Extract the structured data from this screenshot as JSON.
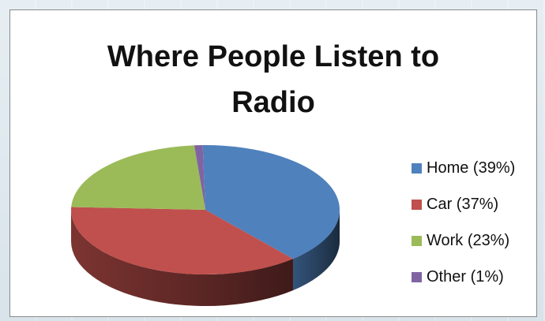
{
  "chart_data": {
    "type": "pie",
    "title": "Where People Listen to Radio",
    "categories": [
      "Home",
      "Car",
      "Work",
      "Other"
    ],
    "values": [
      39,
      37,
      23,
      1
    ],
    "unit": "%",
    "legend_labels": [
      "Home (39%)",
      "Car (37%)",
      "Work (23%)",
      "Other (1%)"
    ],
    "colors": [
      "#4f81bd",
      "#c0504d",
      "#9bbb59",
      "#8064a2"
    ],
    "legend_position": "right",
    "style": "3d"
  }
}
